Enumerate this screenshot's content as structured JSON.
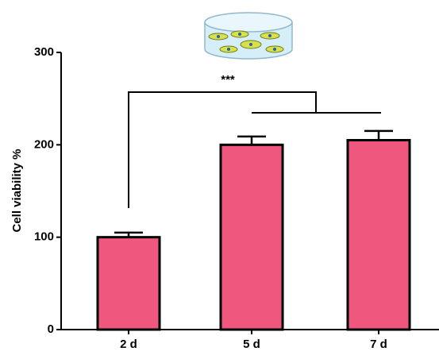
{
  "chart_data": {
    "type": "bar",
    "y_label": "Cell viability %",
    "categories": [
      "2 d",
      "5 d",
      "7 d"
    ],
    "values": [
      100,
      200,
      205
    ],
    "errors": [
      5,
      9,
      10
    ],
    "color": "#f0577f",
    "ylim": [
      0,
      300
    ],
    "yticks": [
      0,
      100,
      200,
      300
    ],
    "annotation": "***"
  }
}
